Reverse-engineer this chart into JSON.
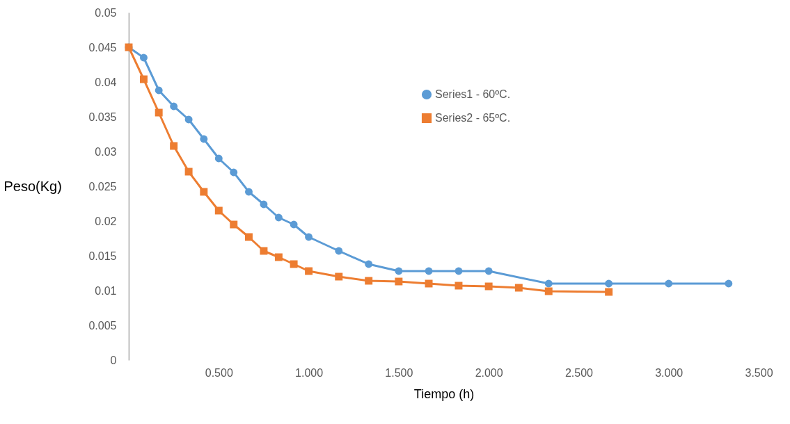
{
  "chart_data": {
    "type": "line",
    "xlabel": "Tiempo (h)",
    "ylabel": "Peso(Kg)",
    "xlim": [
      0,
      3.5
    ],
    "xticks": [
      {
        "value": 0.5,
        "label": "0.500"
      },
      {
        "value": 1,
        "label": "1.000"
      },
      {
        "value": 1.5,
        "label": "1.500"
      },
      {
        "value": 2,
        "label": "2.000"
      },
      {
        "value": 2.5,
        "label": "2.500"
      },
      {
        "value": 3,
        "label": "3.000"
      },
      {
        "value": 3.5,
        "label": "3.500"
      }
    ],
    "ylim": [
      0,
      0.05
    ],
    "yticks": [
      0,
      0.005,
      0.01,
      0.015,
      0.02,
      0.025,
      0.03,
      0.035,
      0.04,
      0.045,
      0.05
    ],
    "grid": false,
    "legend": "top right",
    "line_style": "solid",
    "series": [
      {
        "name": "Series1 - 60ºC.",
        "color": "#5b9bd5",
        "marker": "circle",
        "x": [
          0,
          0.083,
          0.167,
          0.25,
          0.333,
          0.417,
          0.5,
          0.583,
          0.667,
          0.75,
          0.833,
          0.917,
          1.0,
          1.167,
          1.333,
          1.5,
          1.667,
          1.833,
          2.0,
          2.333,
          2.667,
          3.0,
          3.333
        ],
        "values": [
          0.045,
          0.0435,
          0.0388,
          0.0365,
          0.0346,
          0.0318,
          0.029,
          0.027,
          0.0242,
          0.0224,
          0.0205,
          0.0195,
          0.0177,
          0.0157,
          0.0138,
          0.0128,
          0.0128,
          0.0128,
          0.0128,
          0.011,
          0.011,
          0.011,
          0.011
        ]
      },
      {
        "name": "Series2 - 65ºC.",
        "color": "#ed7d31",
        "marker": "square",
        "x": [
          0,
          0.083,
          0.167,
          0.25,
          0.333,
          0.417,
          0.5,
          0.583,
          0.667,
          0.75,
          0.833,
          0.917,
          1.0,
          1.167,
          1.333,
          1.5,
          1.667,
          1.833,
          2.0,
          2.167,
          2.333,
          2.667
        ],
        "values": [
          0.045,
          0.0404,
          0.0356,
          0.0308,
          0.0271,
          0.0242,
          0.0215,
          0.0195,
          0.0177,
          0.0157,
          0.0148,
          0.0138,
          0.0128,
          0.012,
          0.0114,
          0.0113,
          0.011,
          0.0107,
          0.0106,
          0.0104,
          0.0099,
          0.0098
        ]
      }
    ]
  }
}
